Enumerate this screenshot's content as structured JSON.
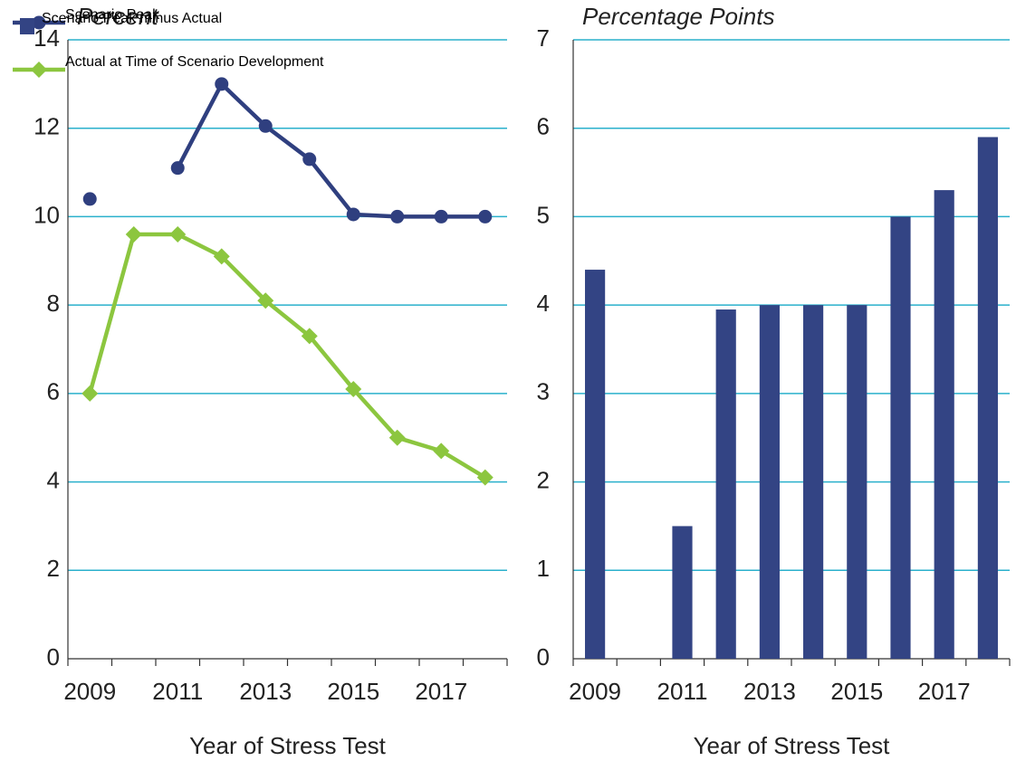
{
  "chart_data": [
    {
      "type": "line",
      "ylabel": "Percent",
      "xlabel": "Year of Stress Test",
      "categories": [
        "2009",
        null,
        "2011",
        null,
        "2013",
        null,
        "2015",
        null,
        "2017",
        null
      ],
      "series": [
        {
          "name": "Scenario Peak",
          "color": "#2f3f7f",
          "marker": "circle",
          "values": [
            10.4,
            null,
            11.1,
            13.0,
            12.05,
            11.3,
            10.05,
            10,
            10,
            10
          ]
        },
        {
          "name": "Actual at Time of Scenario Development",
          "color": "#8cc63f",
          "marker": "diamond",
          "values": [
            6,
            9.6,
            9.6,
            9.1,
            8.1,
            7.3,
            6.1,
            5.0,
            4.7,
            4.1
          ]
        }
      ],
      "ylim": [
        0,
        14
      ],
      "yticks": [
        0,
        2,
        4,
        6,
        8,
        10,
        12,
        14
      ],
      "grid": true,
      "legend": "lower"
    },
    {
      "type": "bar",
      "ylabel": "Percentage Points",
      "xlabel": "Year of Stress Test",
      "categories": [
        "2009",
        null,
        "2011",
        null,
        "2013",
        null,
        "2015",
        null,
        "2017",
        null
      ],
      "series": [
        {
          "name": "Scenario Peak minus Actual",
          "color": "#334484",
          "values": [
            4.4,
            null,
            1.5,
            3.95,
            4,
            4,
            4,
            5,
            5.3,
            5.9
          ]
        }
      ],
      "ylim": [
        0,
        7
      ],
      "yticks": [
        0,
        1,
        2,
        3,
        4,
        5,
        6,
        7
      ],
      "grid": true,
      "legend": "upper left"
    }
  ]
}
